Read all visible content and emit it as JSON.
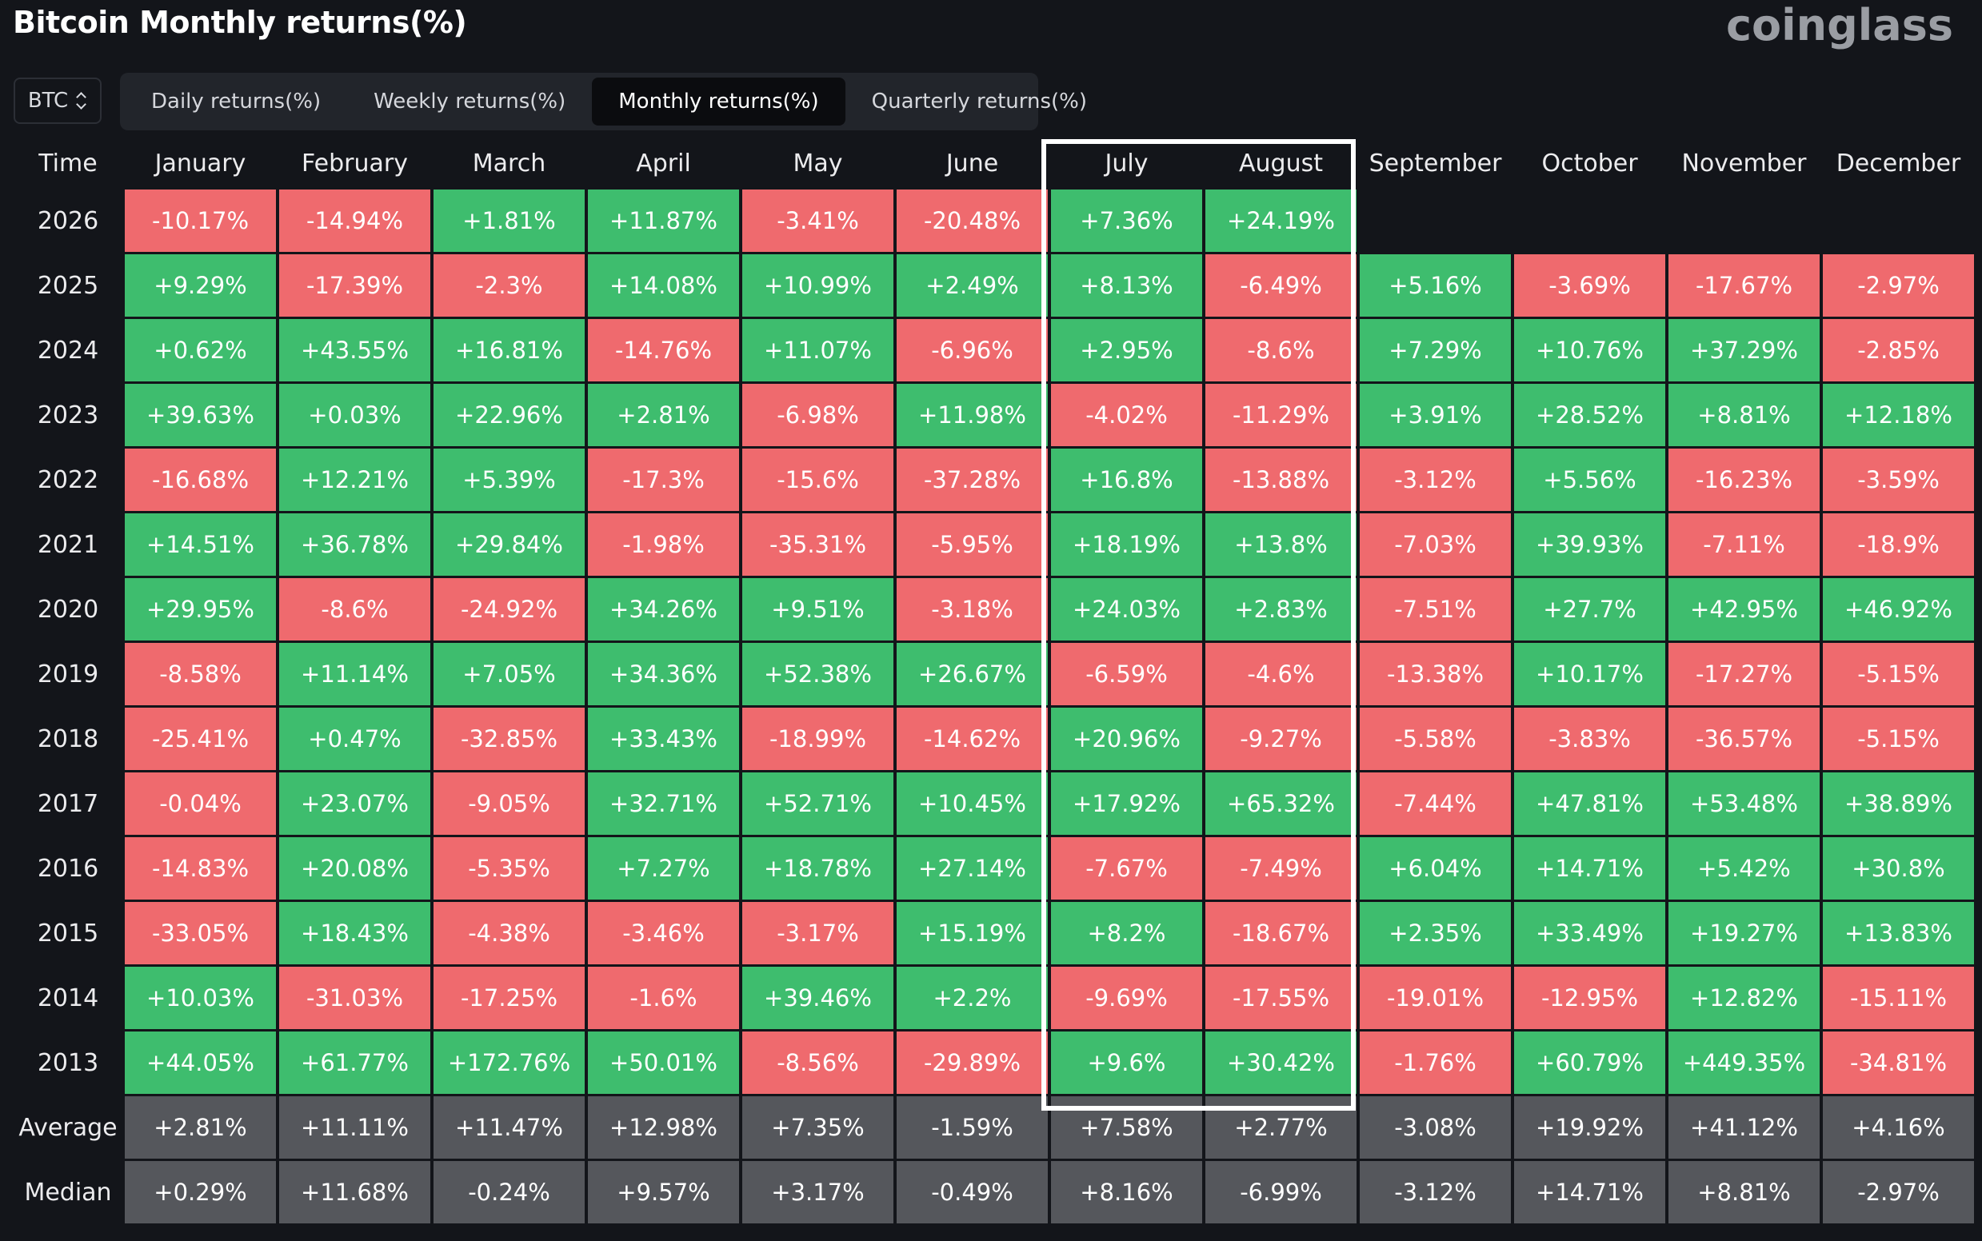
{
  "header": {
    "title": "Bitcoin Monthly returns(%)",
    "brand": "coinglass"
  },
  "coin_select": {
    "value": "BTC"
  },
  "tabs": [
    {
      "label": "Daily returns(%)",
      "active": false
    },
    {
      "label": "Weekly returns(%)",
      "active": false
    },
    {
      "label": "Monthly returns(%)",
      "active": true
    },
    {
      "label": "Quarterly returns(%)",
      "active": false
    }
  ],
  "table": {
    "time_header": "Time",
    "months": [
      "January",
      "February",
      "March",
      "April",
      "May",
      "June",
      "July",
      "August",
      "September",
      "October",
      "November",
      "December"
    ],
    "highlighted_months": [
      "July",
      "August"
    ],
    "rows": [
      {
        "label": "2026",
        "values": [
          "-10.17%",
          "-14.94%",
          "+1.81%",
          "+11.87%",
          "-3.41%",
          "-20.48%",
          "+7.36%",
          "+24.19%",
          "",
          "",
          "",
          ""
        ]
      },
      {
        "label": "2025",
        "values": [
          "+9.29%",
          "-17.39%",
          "-2.3%",
          "+14.08%",
          "+10.99%",
          "+2.49%",
          "+8.13%",
          "-6.49%",
          "+5.16%",
          "-3.69%",
          "-17.67%",
          "-2.97%"
        ]
      },
      {
        "label": "2024",
        "values": [
          "+0.62%",
          "+43.55%",
          "+16.81%",
          "-14.76%",
          "+11.07%",
          "-6.96%",
          "+2.95%",
          "-8.6%",
          "+7.29%",
          "+10.76%",
          "+37.29%",
          "-2.85%"
        ]
      },
      {
        "label": "2023",
        "values": [
          "+39.63%",
          "+0.03%",
          "+22.96%",
          "+2.81%",
          "-6.98%",
          "+11.98%",
          "-4.02%",
          "-11.29%",
          "+3.91%",
          "+28.52%",
          "+8.81%",
          "+12.18%"
        ]
      },
      {
        "label": "2022",
        "values": [
          "-16.68%",
          "+12.21%",
          "+5.39%",
          "-17.3%",
          "-15.6%",
          "-37.28%",
          "+16.8%",
          "-13.88%",
          "-3.12%",
          "+5.56%",
          "-16.23%",
          "-3.59%"
        ]
      },
      {
        "label": "2021",
        "values": [
          "+14.51%",
          "+36.78%",
          "+29.84%",
          "-1.98%",
          "-35.31%",
          "-5.95%",
          "+18.19%",
          "+13.8%",
          "-7.03%",
          "+39.93%",
          "-7.11%",
          "-18.9%"
        ]
      },
      {
        "label": "2020",
        "values": [
          "+29.95%",
          "-8.6%",
          "-24.92%",
          "+34.26%",
          "+9.51%",
          "-3.18%",
          "+24.03%",
          "+2.83%",
          "-7.51%",
          "+27.7%",
          "+42.95%",
          "+46.92%"
        ]
      },
      {
        "label": "2019",
        "values": [
          "-8.58%",
          "+11.14%",
          "+7.05%",
          "+34.36%",
          "+52.38%",
          "+26.67%",
          "-6.59%",
          "-4.6%",
          "-13.38%",
          "+10.17%",
          "-17.27%",
          "-5.15%"
        ]
      },
      {
        "label": "2018",
        "values": [
          "-25.41%",
          "+0.47%",
          "-32.85%",
          "+33.43%",
          "-18.99%",
          "-14.62%",
          "+20.96%",
          "-9.27%",
          "-5.58%",
          "-3.83%",
          "-36.57%",
          "-5.15%"
        ]
      },
      {
        "label": "2017",
        "values": [
          "-0.04%",
          "+23.07%",
          "-9.05%",
          "+32.71%",
          "+52.71%",
          "+10.45%",
          "+17.92%",
          "+65.32%",
          "-7.44%",
          "+47.81%",
          "+53.48%",
          "+38.89%"
        ]
      },
      {
        "label": "2016",
        "values": [
          "-14.83%",
          "+20.08%",
          "-5.35%",
          "+7.27%",
          "+18.78%",
          "+27.14%",
          "-7.67%",
          "-7.49%",
          "+6.04%",
          "+14.71%",
          "+5.42%",
          "+30.8%"
        ]
      },
      {
        "label": "2015",
        "values": [
          "-33.05%",
          "+18.43%",
          "-4.38%",
          "-3.46%",
          "-3.17%",
          "+15.19%",
          "+8.2%",
          "-18.67%",
          "+2.35%",
          "+33.49%",
          "+19.27%",
          "+13.83%"
        ]
      },
      {
        "label": "2014",
        "values": [
          "+10.03%",
          "-31.03%",
          "-17.25%",
          "-1.6%",
          "+39.46%",
          "+2.2%",
          "-9.69%",
          "-17.55%",
          "-19.01%",
          "-12.95%",
          "+12.82%",
          "-15.11%"
        ]
      },
      {
        "label": "2013",
        "values": [
          "+44.05%",
          "+61.77%",
          "+172.76%",
          "+50.01%",
          "-8.56%",
          "-29.89%",
          "+9.6%",
          "+30.42%",
          "-1.76%",
          "+60.79%",
          "+449.35%",
          "-34.81%"
        ]
      }
    ],
    "stats": [
      {
        "label": "Average",
        "values": [
          "+2.81%",
          "+11.11%",
          "+11.47%",
          "+12.98%",
          "+7.35%",
          "-1.59%",
          "+7.58%",
          "+2.77%",
          "-3.08%",
          "+19.92%",
          "+41.12%",
          "+4.16%"
        ]
      },
      {
        "label": "Median",
        "values": [
          "+0.29%",
          "+11.68%",
          "-0.24%",
          "+9.57%",
          "+3.17%",
          "-0.49%",
          "+8.16%",
          "-6.99%",
          "-3.12%",
          "+14.71%",
          "+8.81%",
          "-2.97%"
        ]
      }
    ]
  },
  "colors": {
    "positive": "#3ebd6e",
    "negative": "#ef6a6e",
    "stat": "#55575c",
    "background": "#13151a",
    "highlight": "#ffffff"
  }
}
